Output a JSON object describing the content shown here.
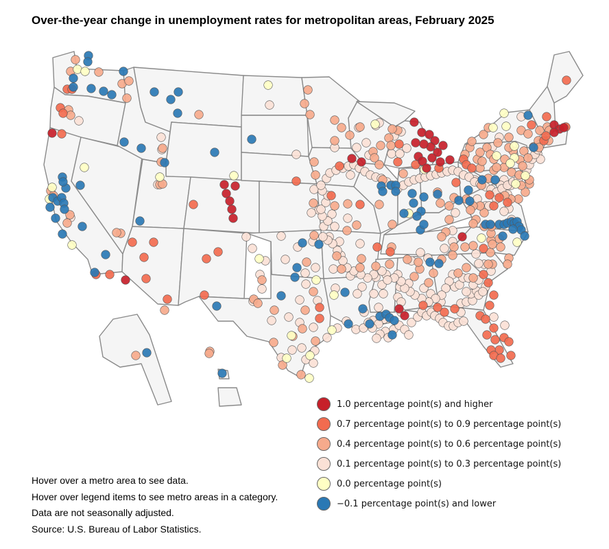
{
  "title": "Over-the-year change in unemployment rates for metropolitan areas, February 2025",
  "categories": [
    {
      "key": "c1",
      "label": "1.0 percentage point(s) and higher",
      "color": "#c7202a"
    },
    {
      "key": "c2",
      "label": "0.7 percentage point(s) to 0.9 percentage point(s)",
      "color": "#f26b4f"
    },
    {
      "key": "c3",
      "label": "0.4 percentage point(s) to 0.6 percentage point(s)",
      "color": "#f6aa8c"
    },
    {
      "key": "c4",
      "label": "0.1 percentage point(s) to 0.3 percentage point(s)",
      "color": "#fbe1d6"
    },
    {
      "key": "c5",
      "label": "0.0 percentage point(s)",
      "color": "#ffffc4"
    },
    {
      "key": "c6",
      "label": "−0.1 percentage point(s) and lower",
      "color": "#2a78b4"
    }
  ],
  "notes": [
    "Hover over a metro area to see data.",
    "Hover over legend items to see metro areas in a category.",
    "Data are not seasonally adjusted.",
    "Source: U.S. Bureau of Labor Statistics."
  ]
}
